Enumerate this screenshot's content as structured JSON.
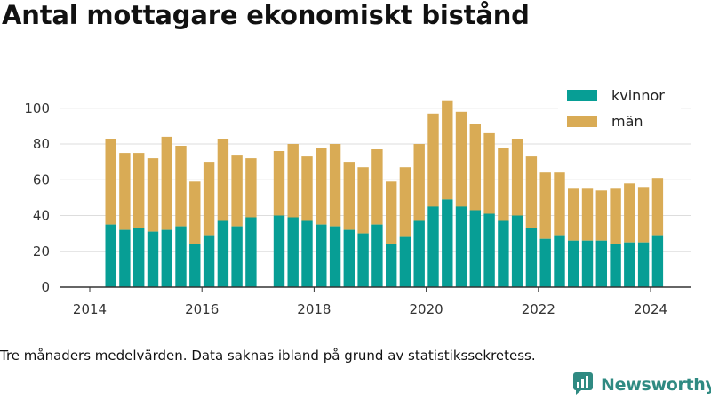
{
  "title": "Antal mottagare ekonomiskt bistånd",
  "note": "Tre månaders medelvärden. Data saknas ibland på grund av statistikssekretess.",
  "brand": {
    "name": "Newsworthy",
    "icon": "newsworthy-logo-icon"
  },
  "colors": {
    "kvinnor": "#079e95",
    "man": "#d9ab55",
    "axis": "#333333",
    "grid": "#dddddd"
  },
  "chart_data": {
    "type": "bar",
    "stacked": true,
    "title": "Antal mottagare ekonomiskt bistånd",
    "xlabel": "",
    "ylabel": "",
    "ylim": [
      0,
      110
    ],
    "yticks": [
      0,
      20,
      40,
      60,
      80,
      100
    ],
    "xticks": [
      "2014",
      "2016",
      "2018",
      "2020",
      "2022",
      "2024"
    ],
    "grid": true,
    "legend_position": "top-right",
    "categories": [
      "2014-Q2",
      "2014-Q3",
      "2014-Q4",
      "2015-Q1",
      "2015-Q2",
      "2015-Q3",
      "2015-Q4",
      "2016-Q1",
      "2016-Q2",
      "2016-Q3",
      "2016-Q4",
      "2017-Q1",
      "2017-Q2",
      "2017-Q3",
      "2017-Q4",
      "2018-Q1",
      "2018-Q2",
      "2018-Q3",
      "2018-Q4",
      "2019-Q1",
      "2019-Q2",
      "2019-Q3",
      "2019-Q4",
      "2020-Q1",
      "2020-Q2",
      "2020-Q3",
      "2020-Q4",
      "2021-Q1",
      "2021-Q2",
      "2021-Q3",
      "2021-Q4",
      "2022-Q1",
      "2022-Q2",
      "2022-Q3",
      "2022-Q4",
      "2023-Q1",
      "2023-Q2",
      "2023-Q3",
      "2023-Q4",
      "2024-Q1"
    ],
    "series": [
      {
        "name": "kvinnor",
        "values": [
          35,
          32,
          33,
          31,
          32,
          34,
          24,
          29,
          37,
          34,
          39,
          null,
          40,
          39,
          37,
          35,
          34,
          32,
          30,
          35,
          24,
          28,
          37,
          45,
          49,
          45,
          43,
          41,
          37,
          40,
          33,
          27,
          29,
          26,
          26,
          26,
          24,
          25,
          25,
          29
        ]
      },
      {
        "name": "män",
        "values": [
          48,
          43,
          42,
          41,
          52,
          45,
          35,
          41,
          46,
          40,
          33,
          null,
          36,
          41,
          36,
          43,
          46,
          38,
          37,
          42,
          35,
          39,
          43,
          52,
          55,
          53,
          48,
          45,
          41,
          43,
          40,
          37,
          35,
          29,
          29,
          28,
          31,
          33,
          31,
          32
        ]
      }
    ]
  }
}
